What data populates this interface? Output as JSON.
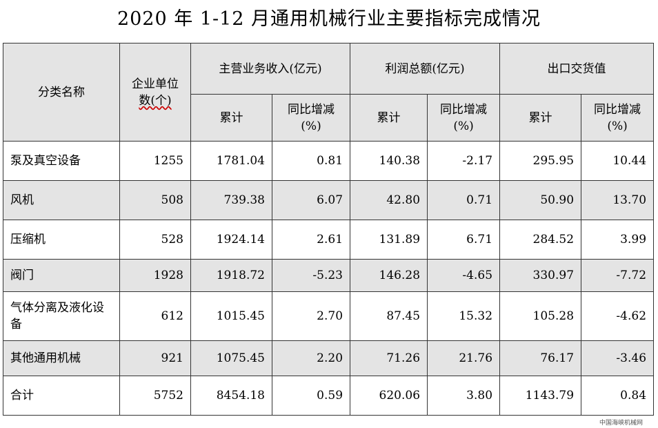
{
  "title": "2020 年 1-12 月通用机械行业主要指标完成情况",
  "header": {
    "category": "分类名称",
    "enterprises_1": "企业单位",
    "enterprises_2": "数(个)",
    "revenue": "主营业务收入(亿元)",
    "profit": "利润总额(亿元)",
    "export": "出口交货值",
    "cumulative": "累计",
    "yoy_1": "同比增减",
    "yoy_2": "(%)"
  },
  "rows": [
    {
      "name": "泵及真空设备",
      "count": "1255",
      "rev": "1781.04",
      "rev_yoy": "0.81",
      "profit": "140.38",
      "profit_yoy": "-2.17",
      "export": "295.95",
      "export_yoy": "10.44"
    },
    {
      "name": "风机",
      "count": "508",
      "rev": "739.38",
      "rev_yoy": "6.07",
      "profit": "42.80",
      "profit_yoy": "0.71",
      "export": "50.90",
      "export_yoy": "13.70"
    },
    {
      "name": "压缩机",
      "count": "528",
      "rev": "1924.14",
      "rev_yoy": "2.61",
      "profit": "131.89",
      "profit_yoy": "6.71",
      "export": "284.52",
      "export_yoy": "3.99"
    },
    {
      "name": "阀门",
      "count": "1928",
      "rev": "1918.72",
      "rev_yoy": "-5.23",
      "profit": "146.28",
      "profit_yoy": "-4.65",
      "export": "330.97",
      "export_yoy": "-7.72"
    },
    {
      "name": "气体分离及液化设备",
      "count": "612",
      "rev": "1015.45",
      "rev_yoy": "2.70",
      "profit": "87.45",
      "profit_yoy": "15.32",
      "export": "105.28",
      "export_yoy": "-4.62"
    },
    {
      "name": "其他通用机械",
      "count": "921",
      "rev": "1075.45",
      "rev_yoy": "2.20",
      "profit": "71.26",
      "profit_yoy": "21.76",
      "export": "76.17",
      "export_yoy": "-3.46"
    },
    {
      "name": "合计",
      "count": "5752",
      "rev": "8454.18",
      "rev_yoy": "0.59",
      "profit": "620.06",
      "profit_yoy": "3.80",
      "export": "1143.79",
      "export_yoy": "0.84"
    }
  ],
  "watermark": "中国海峡机械网",
  "colors": {
    "header_bg": "#e4e4e4",
    "row_shade": "#e4e4e4",
    "border": "#333333"
  }
}
